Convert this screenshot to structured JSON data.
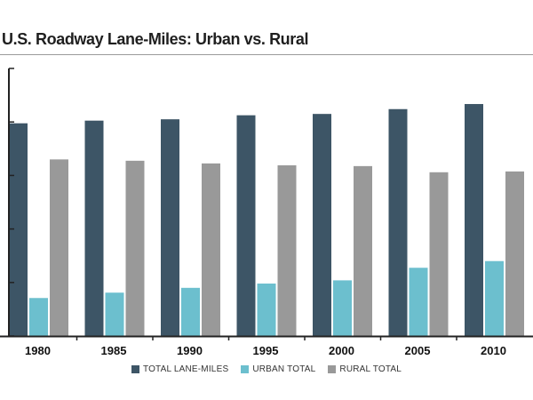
{
  "chart_data": {
    "type": "bar",
    "title": "U.S. Roadway Lane-Miles: Urban vs. Rural",
    "categories": [
      "1980",
      "1985",
      "1990",
      "1995",
      "2000",
      "2005",
      "2010"
    ],
    "series": [
      {
        "name": "TOTAL LANE-MILES",
        "color": "#3d5566",
        "values": [
          7.95,
          8.05,
          8.1,
          8.25,
          8.3,
          8.48,
          8.67
        ]
      },
      {
        "name": "URBAN TOTAL",
        "color": "#6cbfce",
        "values": [
          1.42,
          1.62,
          1.8,
          1.96,
          2.08,
          2.55,
          2.8
        ]
      },
      {
        "name": "RURAL TOTAL",
        "color": "#999999",
        "values": [
          6.6,
          6.55,
          6.45,
          6.38,
          6.35,
          6.12,
          6.15
        ]
      }
    ],
    "ylim": [
      0,
      10
    ],
    "xlabel": "",
    "ylabel": "",
    "grid": false,
    "legend_position": "bottom-center"
  }
}
